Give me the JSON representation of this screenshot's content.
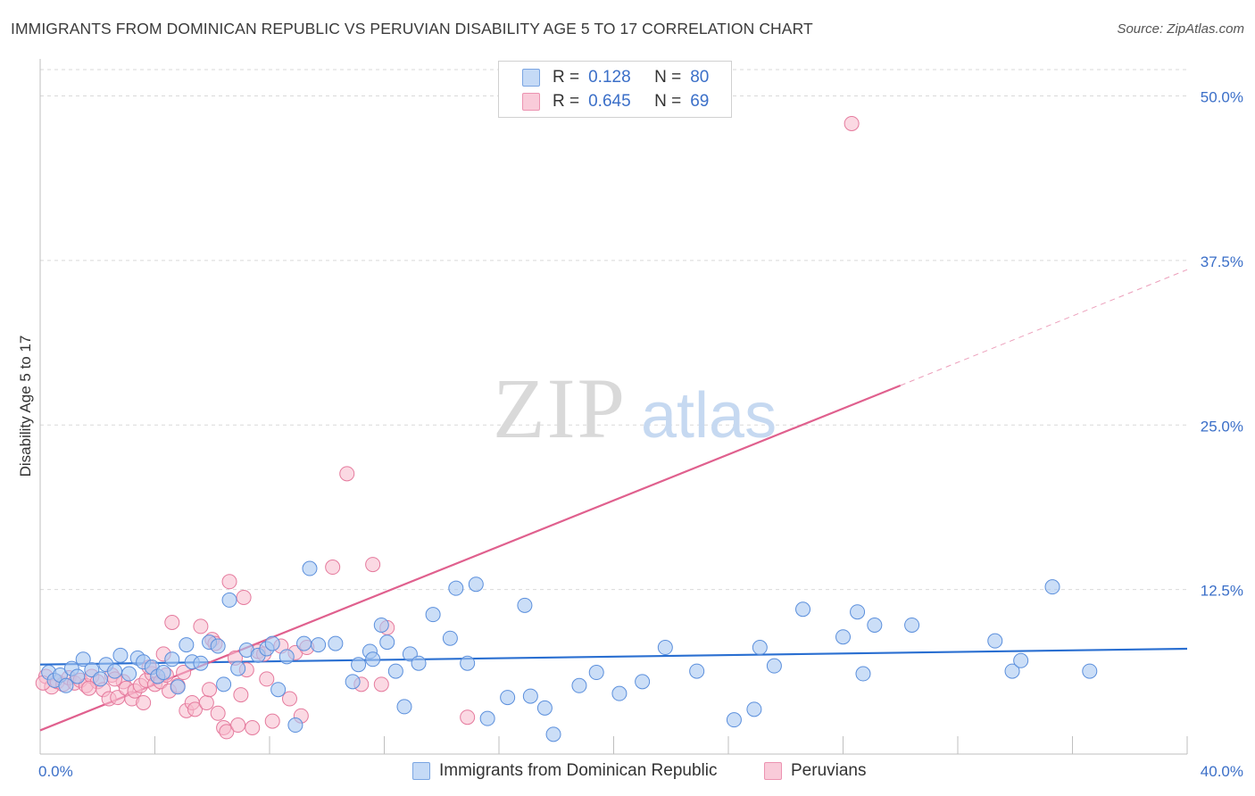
{
  "title": "IMMIGRANTS FROM DOMINICAN REPUBLIC VS PERUVIAN DISABILITY AGE 5 TO 17 CORRELATION CHART",
  "source": "Source: ZipAtlas.com",
  "watermark": {
    "zip": "ZIP",
    "atlas": "atlas"
  },
  "colors": {
    "blue_fill": "#a9c8f2",
    "blue_stroke": "#5b8fdc",
    "blue_line": "#2a6fd1",
    "pink_fill": "#f7b9cc",
    "pink_stroke": "#e57a9d",
    "pink_line": "#e0608e",
    "axis_label": "#3b6fc8",
    "grid": "#d9d9d9"
  },
  "legend": {
    "rows": [
      {
        "r_label": "R =",
        "r_value": "0.128",
        "n_label": "N =",
        "n_value": "80"
      },
      {
        "r_label": "R =",
        "r_value": "0.645",
        "n_label": "N =",
        "n_value": "69"
      }
    ]
  },
  "bottom_legend": {
    "series_a": "Immigrants from Dominican Republic",
    "series_b": "Peruvians"
  },
  "chart_data": {
    "type": "scatter",
    "xlabel": "",
    "ylabel": "Disability Age 5 to 17",
    "xlim": [
      0,
      40
    ],
    "ylim": [
      0,
      52
    ],
    "x_tick_labels": [
      {
        "value": 0,
        "label": "0.0%"
      },
      {
        "value": 40,
        "label": "40.0%"
      }
    ],
    "y_tick_labels": [
      {
        "value": 12.5,
        "label": "12.5%"
      },
      {
        "value": 25,
        "label": "25.0%"
      },
      {
        "value": 37.5,
        "label": "37.5%"
      },
      {
        "value": 50,
        "label": "50.0%"
      }
    ],
    "x_minor_ticks": [
      0,
      4,
      8,
      12,
      16,
      20,
      24,
      28,
      32,
      36,
      40
    ],
    "series": [
      {
        "name": "Immigrants from Dominican Republic",
        "color": "blue",
        "trend": {
          "x0": 0,
          "y0": 6.8,
          "x1": 40,
          "y1": 8.0
        },
        "points": [
          [
            0.3,
            6.2
          ],
          [
            0.5,
            5.6
          ],
          [
            0.7,
            6.0
          ],
          [
            0.9,
            5.2
          ],
          [
            1.1,
            6.5
          ],
          [
            1.3,
            5.9
          ],
          [
            1.5,
            7.2
          ],
          [
            1.8,
            6.4
          ],
          [
            2.1,
            5.7
          ],
          [
            2.3,
            6.8
          ],
          [
            2.6,
            6.3
          ],
          [
            2.8,
            7.5
          ],
          [
            3.1,
            6.1
          ],
          [
            3.4,
            7.3
          ],
          [
            3.6,
            7.0
          ],
          [
            3.9,
            6.6
          ],
          [
            4.1,
            5.9
          ],
          [
            4.3,
            6.2
          ],
          [
            4.6,
            7.2
          ],
          [
            4.8,
            5.1
          ],
          [
            5.1,
            8.3
          ],
          [
            5.3,
            7.0
          ],
          [
            5.6,
            6.9
          ],
          [
            5.9,
            8.5
          ],
          [
            6.2,
            8.2
          ],
          [
            6.4,
            5.3
          ],
          [
            6.6,
            11.7
          ],
          [
            6.9,
            6.5
          ],
          [
            7.2,
            7.9
          ],
          [
            7.6,
            7.5
          ],
          [
            7.9,
            8.0
          ],
          [
            8.1,
            8.4
          ],
          [
            8.3,
            4.9
          ],
          [
            8.6,
            7.4
          ],
          [
            8.9,
            2.2
          ],
          [
            9.2,
            8.4
          ],
          [
            9.4,
            14.1
          ],
          [
            9.7,
            8.3
          ],
          [
            10.3,
            8.4
          ],
          [
            10.9,
            5.5
          ],
          [
            11.1,
            6.8
          ],
          [
            11.5,
            7.8
          ],
          [
            11.6,
            7.2
          ],
          [
            11.9,
            9.8
          ],
          [
            12.1,
            8.5
          ],
          [
            12.4,
            6.3
          ],
          [
            12.7,
            3.6
          ],
          [
            12.9,
            7.6
          ],
          [
            13.2,
            6.9
          ],
          [
            13.7,
            10.6
          ],
          [
            14.3,
            8.8
          ],
          [
            14.5,
            12.6
          ],
          [
            14.9,
            6.9
          ],
          [
            15.2,
            12.9
          ],
          [
            15.6,
            2.7
          ],
          [
            16.3,
            4.3
          ],
          [
            16.9,
            11.3
          ],
          [
            17.1,
            4.4
          ],
          [
            17.6,
            3.5
          ],
          [
            17.9,
            1.5
          ],
          [
            18.8,
            5.2
          ],
          [
            19.4,
            6.2
          ],
          [
            20.2,
            4.6
          ],
          [
            21.0,
            5.5
          ],
          [
            21.8,
            8.1
          ],
          [
            22.9,
            6.3
          ],
          [
            24.2,
            2.6
          ],
          [
            24.9,
            3.4
          ],
          [
            25.1,
            8.1
          ],
          [
            25.6,
            6.7
          ],
          [
            26.6,
            11.0
          ],
          [
            28.0,
            8.9
          ],
          [
            28.5,
            10.8
          ],
          [
            28.7,
            6.1
          ],
          [
            29.1,
            9.8
          ],
          [
            30.4,
            9.8
          ],
          [
            33.3,
            8.6
          ],
          [
            33.9,
            6.3
          ],
          [
            34.2,
            7.1
          ],
          [
            35.3,
            12.7
          ],
          [
            36.6,
            6.3
          ]
        ]
      },
      {
        "name": "Peruvians",
        "color": "pink",
        "trend": {
          "x0": 0,
          "y0": 1.8,
          "x1": 30,
          "y1": 28.0,
          "dash_x1": 40,
          "dash_y1": 36.8
        },
        "points": [
          [
            0.2,
            5.9
          ],
          [
            0.4,
            5.1
          ],
          [
            0.6,
            5.5
          ],
          [
            0.8,
            5.3
          ],
          [
            1.0,
            5.8
          ],
          [
            1.2,
            5.4
          ],
          [
            1.4,
            5.6
          ],
          [
            1.6,
            5.2
          ],
          [
            1.8,
            5.9
          ],
          [
            2.0,
            5.5
          ],
          [
            2.2,
            4.9
          ],
          [
            2.4,
            4.2
          ],
          [
            2.5,
            6.0
          ],
          [
            2.7,
            4.3
          ],
          [
            2.9,
            5.5
          ],
          [
            3.0,
            5.0
          ],
          [
            3.2,
            4.2
          ],
          [
            3.3,
            4.8
          ],
          [
            3.5,
            5.2
          ],
          [
            3.6,
            3.9
          ],
          [
            3.7,
            5.6
          ],
          [
            3.9,
            6.1
          ],
          [
            4.0,
            5.3
          ],
          [
            4.2,
            5.5
          ],
          [
            4.3,
            7.6
          ],
          [
            4.4,
            6.0
          ],
          [
            4.5,
            4.8
          ],
          [
            4.6,
            10.0
          ],
          [
            4.8,
            5.2
          ],
          [
            5.0,
            6.2
          ],
          [
            5.1,
            3.3
          ],
          [
            5.3,
            3.9
          ],
          [
            5.4,
            3.4
          ],
          [
            5.6,
            9.7
          ],
          [
            5.8,
            3.9
          ],
          [
            5.9,
            4.9
          ],
          [
            6.0,
            8.7
          ],
          [
            6.1,
            8.4
          ],
          [
            6.2,
            3.1
          ],
          [
            6.4,
            2.0
          ],
          [
            6.5,
            1.7
          ],
          [
            6.6,
            13.1
          ],
          [
            6.8,
            7.3
          ],
          [
            6.9,
            2.2
          ],
          [
            7.0,
            4.5
          ],
          [
            7.1,
            11.9
          ],
          [
            7.2,
            6.4
          ],
          [
            7.4,
            2.0
          ],
          [
            7.6,
            7.8
          ],
          [
            7.8,
            7.6
          ],
          [
            7.9,
            5.7
          ],
          [
            8.1,
            2.5
          ],
          [
            8.4,
            8.2
          ],
          [
            8.7,
            4.2
          ],
          [
            8.9,
            7.7
          ],
          [
            9.1,
            2.9
          ],
          [
            9.3,
            8.1
          ],
          [
            10.2,
            14.2
          ],
          [
            10.7,
            21.3
          ],
          [
            11.2,
            5.3
          ],
          [
            11.6,
            14.4
          ],
          [
            11.9,
            5.3
          ],
          [
            12.1,
            9.6
          ],
          [
            14.9,
            2.8
          ],
          [
            28.3,
            47.9
          ],
          [
            0.1,
            5.4
          ],
          [
            1.7,
            5.0
          ],
          [
            2.6,
            5.7
          ],
          [
            3.8,
            6.6
          ]
        ]
      }
    ]
  }
}
